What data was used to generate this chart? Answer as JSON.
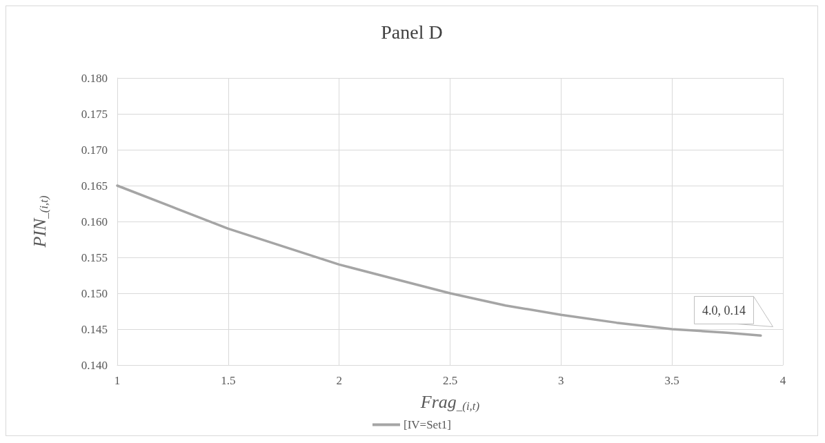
{
  "chart_data": {
    "type": "line",
    "title": "Panel D",
    "xlabel": "Frag$_{_(i,t)}$",
    "ylabel": "PIN$_{_(i,t)}$",
    "annotations": [
      "4.0, 0.14"
    ],
    "x": [
      1,
      1.25,
      1.5,
      1.75,
      2,
      2.25,
      2.5,
      2.75,
      3,
      3.25,
      3.5,
      3.75,
      3.9
    ],
    "series": [
      {
        "name": "[IV=Set1]",
        "color": "#a5a5a5",
        "values": [
          0.165,
          0.162,
          0.159,
          0.1565,
          0.154,
          0.152,
          0.15,
          0.1483,
          0.147,
          0.1459,
          0.145,
          0.1445,
          0.1441
        ]
      }
    ],
    "xlim": [
      1,
      4
    ],
    "xticks": [
      1,
      1.5,
      2,
      2.5,
      3,
      3.5,
      4
    ],
    "ylim": [
      0.14,
      0.18
    ],
    "yticks": [
      {
        "value": 0.14,
        "label": "0.140"
      },
      0.145,
      {
        "value": 0.15,
        "label": "0.150"
      },
      0.155,
      {
        "value": 0.16,
        "label": "0.160"
      },
      0.165,
      {
        "value": 0.17,
        "label": "0.170"
      },
      0.175,
      {
        "value": 0.18,
        "label": "0.180"
      }
    ],
    "grid": true,
    "legend": "bottom",
    "marker": "none",
    "line_style": "solid"
  }
}
